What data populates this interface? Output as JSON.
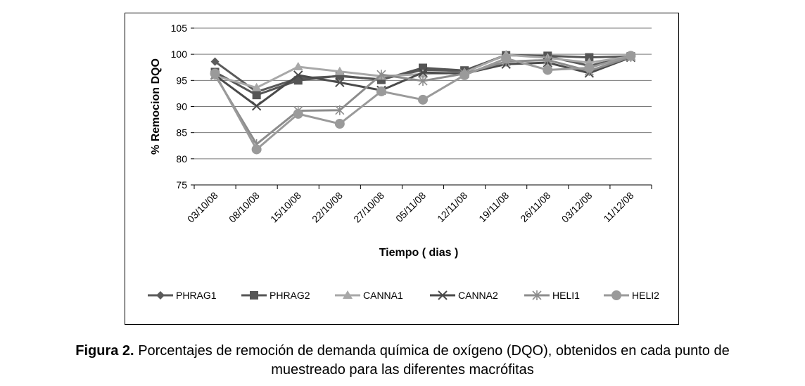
{
  "chart_data": {
    "type": "line",
    "ylabel": "% Remocion DQO",
    "xlabel": "Tiempo ( dias )",
    "ylim": [
      75,
      105
    ],
    "yticks": [
      75,
      80,
      85,
      90,
      95,
      100,
      105
    ],
    "grid": "horizontal",
    "legend_position": "bottom",
    "categories": [
      "03/10/08",
      "08/10/08",
      "15/10/08",
      "22/10/08",
      "27/10/08",
      "05/11/08",
      "12/11/08",
      "19/11/08",
      "26/11/08",
      "03/12/08",
      "11/12/08"
    ],
    "series": [
      {
        "name": "PHRAG1",
        "marker": "diamond",
        "color": "#5a5a5a",
        "values": [
          98.6,
          92.8,
          95.4,
          95.8,
          95.2,
          97.0,
          96.8,
          99.9,
          99.6,
          97.8,
          99.6
        ]
      },
      {
        "name": "PHRAG2",
        "marker": "square",
        "color": "#555555",
        "values": [
          96.6,
          92.2,
          95.0,
          95.9,
          95.1,
          97.4,
          96.9,
          99.8,
          99.7,
          99.4,
          99.6
        ]
      },
      {
        "name": "CANNA1",
        "marker": "triangle",
        "color": "#a8a8a8",
        "values": [
          95.9,
          93.6,
          97.6,
          96.7,
          95.8,
          96.2,
          96.5,
          99.9,
          99.3,
          98.4,
          99.6
        ]
      },
      {
        "name": "CANNA2",
        "marker": "x",
        "color": "#4a4a4a",
        "values": [
          96.0,
          90.1,
          96.0,
          94.6,
          93.1,
          96.5,
          96.3,
          98.1,
          98.4,
          96.4,
          99.4
        ]
      },
      {
        "name": "HELI1",
        "marker": "asterisk",
        "color": "#8c8c8c",
        "values": [
          96.0,
          82.8,
          89.2,
          89.3,
          96.1,
          94.9,
          96.3,
          98.6,
          98.9,
          96.8,
          99.5
        ]
      },
      {
        "name": "HELI2",
        "marker": "circle",
        "color": "#9a9a9a",
        "values": [
          96.3,
          81.8,
          88.6,
          86.7,
          92.9,
          91.3,
          96.0,
          99.2,
          97.0,
          97.4,
          99.7
        ]
      }
    ]
  },
  "caption": {
    "label": "Figura 2.",
    "text_line1": "Porcentajes de remoción de demanda química de oxígeno (DQO), obtenidos en cada punto de",
    "text_line2": "muestreado para las diferentes macrófitas"
  }
}
